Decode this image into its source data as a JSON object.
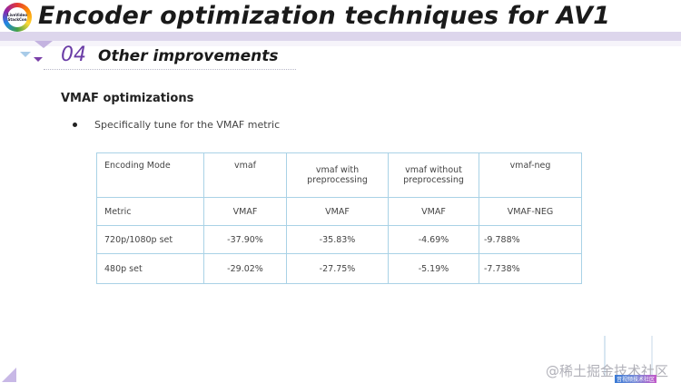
{
  "header": {
    "logo_text": "LiveVideo StackCon",
    "title": "Encoder optimization techniques for AV1"
  },
  "section": {
    "number": "04",
    "title": "Other improvements"
  },
  "content": {
    "heading": "VMAF optimizations",
    "bullets": [
      "Specifically tune for the VMAF metric"
    ]
  },
  "table": {
    "header": [
      "Encoding Mode",
      "vmaf",
      "vmaf with preprocessing",
      "vmaf without preprocessing",
      "vmaf-neg"
    ],
    "rows": [
      [
        "Metric",
        "VMAF",
        "VMAF",
        "VMAF",
        "VMAF-NEG"
      ],
      [
        "720p/1080p set",
        "-37.90%",
        "-35.83%",
        "-4.69%",
        "-9.788%"
      ],
      [
        "480p set",
        "-29.02%",
        "-27.75%",
        "-5.19%",
        "-7.738%"
      ]
    ]
  },
  "watermark": {
    "text": "@稀土掘金技术社区",
    "tag": "音视频技术社区"
  },
  "colors": {
    "accent_purple": "#6a3ca6",
    "title_bar": "#ddd6ec",
    "table_border": "#a9d2e6"
  }
}
